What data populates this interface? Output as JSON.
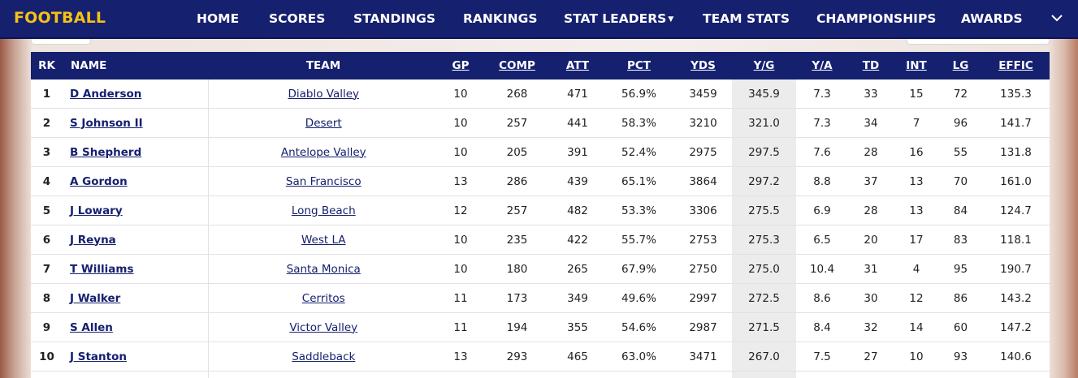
{
  "nav": {
    "brand": "FOOTBALL",
    "items": [
      {
        "label": "HOME"
      },
      {
        "label": "SCORES"
      },
      {
        "label": "STANDINGS"
      },
      {
        "label": "RANKINGS"
      },
      {
        "label": "STAT LEADERS"
      },
      {
        "label": "TEAM STATS"
      },
      {
        "label": "CHAMPIONSHIPS"
      },
      {
        "label": "AWARDS"
      }
    ],
    "expand_icon": "chevron-down-icon",
    "brand_color": "#f5c114",
    "bar_color": "#15206f"
  },
  "table": {
    "headers": {
      "rk": "RK",
      "name": "NAME",
      "team": "TEAM",
      "gp": "GP",
      "comp": "COMP",
      "att": "ATT",
      "pct": "PCT",
      "yds": "YDS",
      "yg": "Y/G",
      "ya": "Y/A",
      "td": "TD",
      "int": "INT",
      "lg": "LG",
      "effic": "EFFIC"
    },
    "rows": [
      {
        "rk": "1",
        "name": "D Anderson",
        "team": "Diablo Valley",
        "gp": "10",
        "comp": "268",
        "att": "471",
        "pct": "56.9%",
        "yds": "3459",
        "yg": "345.9",
        "ya": "7.3",
        "td": "33",
        "int": "15",
        "lg": "72",
        "effic": "135.3"
      },
      {
        "rk": "2",
        "name": "S Johnson II",
        "team": "Desert",
        "gp": "10",
        "comp": "257",
        "att": "441",
        "pct": "58.3%",
        "yds": "3210",
        "yg": "321.0",
        "ya": "7.3",
        "td": "34",
        "int": "7",
        "lg": "96",
        "effic": "141.7"
      },
      {
        "rk": "3",
        "name": "B Shepherd",
        "team": "Antelope Valley",
        "gp": "10",
        "comp": "205",
        "att": "391",
        "pct": "52.4%",
        "yds": "2975",
        "yg": "297.5",
        "ya": "7.6",
        "td": "28",
        "int": "16",
        "lg": "55",
        "effic": "131.8"
      },
      {
        "rk": "4",
        "name": "A Gordon",
        "team": "San Francisco",
        "gp": "13",
        "comp": "286",
        "att": "439",
        "pct": "65.1%",
        "yds": "3864",
        "yg": "297.2",
        "ya": "8.8",
        "td": "37",
        "int": "13",
        "lg": "70",
        "effic": "161.0"
      },
      {
        "rk": "5",
        "name": "J Lowary",
        "team": "Long Beach",
        "gp": "12",
        "comp": "257",
        "att": "482",
        "pct": "53.3%",
        "yds": "3306",
        "yg": "275.5",
        "ya": "6.9",
        "td": "28",
        "int": "13",
        "lg": "84",
        "effic": "124.7"
      },
      {
        "rk": "6",
        "name": "J Reyna",
        "team": "West LA",
        "gp": "10",
        "comp": "235",
        "att": "422",
        "pct": "55.7%",
        "yds": "2753",
        "yg": "275.3",
        "ya": "6.5",
        "td": "20",
        "int": "17",
        "lg": "83",
        "effic": "118.1"
      },
      {
        "rk": "7",
        "name": "T Williams",
        "team": "Santa Monica",
        "gp": "10",
        "comp": "180",
        "att": "265",
        "pct": "67.9%",
        "yds": "2750",
        "yg": "275.0",
        "ya": "10.4",
        "td": "31",
        "int": "4",
        "lg": "95",
        "effic": "190.7"
      },
      {
        "rk": "8",
        "name": "J Walker",
        "team": "Cerritos",
        "gp": "11",
        "comp": "173",
        "att": "349",
        "pct": "49.6%",
        "yds": "2997",
        "yg": "272.5",
        "ya": "8.6",
        "td": "30",
        "int": "12",
        "lg": "86",
        "effic": "143.2"
      },
      {
        "rk": "9",
        "name": "S Allen",
        "team": "Victor Valley",
        "gp": "11",
        "comp": "194",
        "att": "355",
        "pct": "54.6%",
        "yds": "2987",
        "yg": "271.5",
        "ya": "8.4",
        "td": "32",
        "int": "14",
        "lg": "60",
        "effic": "147.2"
      },
      {
        "rk": "10",
        "name": "J Stanton",
        "team": "Saddleback",
        "gp": "13",
        "comp": "293",
        "att": "465",
        "pct": "63.0%",
        "yds": "3471",
        "yg": "267.0",
        "ya": "7.5",
        "td": "27",
        "int": "10",
        "lg": "93",
        "effic": "140.6"
      }
    ]
  }
}
